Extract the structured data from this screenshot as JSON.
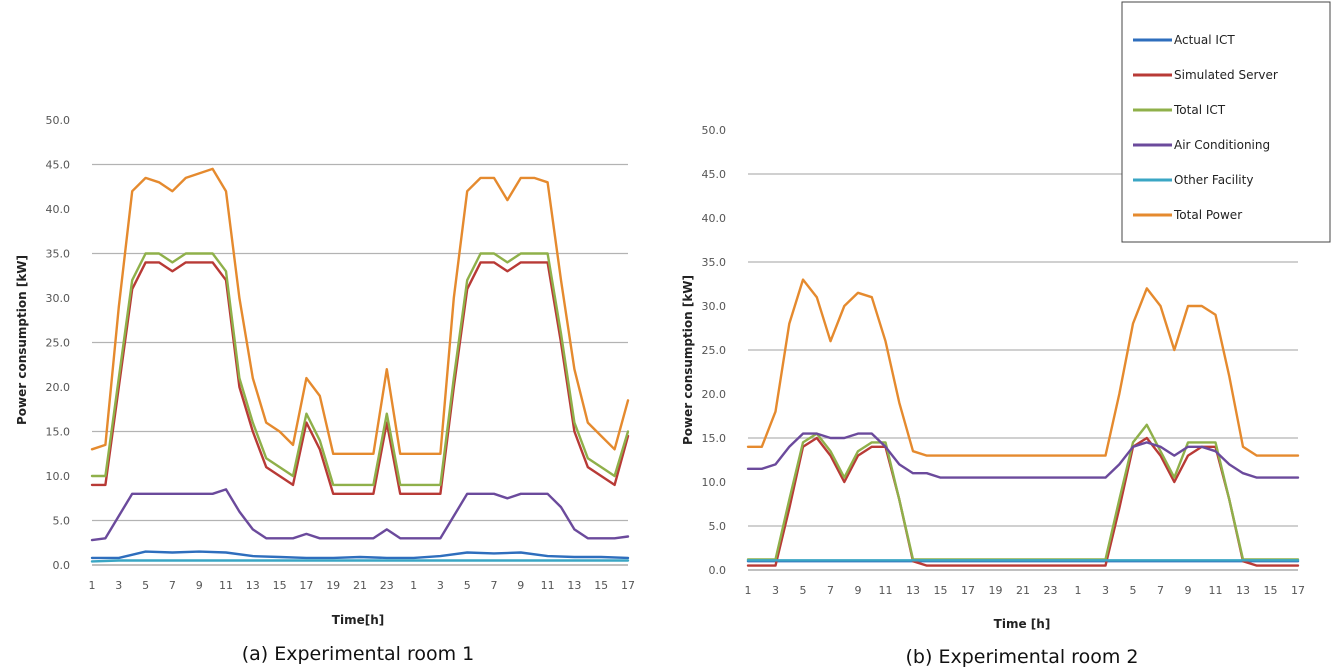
{
  "legend": {
    "position": "top-right",
    "entries": [
      {
        "label": "Actual ICT",
        "color": "#2e6ebd"
      },
      {
        "label": "Simulated Server",
        "color": "#b83a36"
      },
      {
        "label": "Total ICT",
        "color": "#8fb04a"
      },
      {
        "label": "Air Conditioning",
        "color": "#6b4a9c"
      },
      {
        "label": "Other Facility",
        "color": "#3aa6c4"
      },
      {
        "label": "Total Power",
        "color": "#e58a2e"
      }
    ]
  },
  "chart_data": [
    {
      "type": "line",
      "title": "(a) Experimental room 1",
      "xlabel": "Time[h]",
      "ylabel": "Power consumption [kW]",
      "ylim": [
        0,
        50
      ],
      "yticks": [
        "0.0",
        "5.0",
        "10.0",
        "15.0",
        "20.0",
        "25.0",
        "30.0",
        "35.0",
        "40.0",
        "45.0",
        "50.0"
      ],
      "xlim": [
        1,
        41
      ],
      "xtick_labels": [
        "1",
        "3",
        "5",
        "7",
        "9",
        "11",
        "13",
        "15",
        "17",
        "19",
        "21",
        "23",
        "1",
        "3",
        "5",
        "7",
        "9",
        "11",
        "13",
        "15",
        "17"
      ],
      "grid": "horizontal",
      "series": [
        {
          "name": "Actual ICT",
          "x": [
            1,
            3,
            5,
            7,
            9,
            11,
            13,
            15,
            17,
            19,
            21,
            23,
            25,
            27,
            29,
            31,
            33,
            35,
            37,
            39,
            41
          ],
          "values": [
            0.8,
            0.8,
            1.5,
            1.4,
            1.5,
            1.4,
            1.0,
            0.9,
            0.8,
            0.8,
            0.9,
            0.8,
            0.8,
            1.0,
            1.4,
            1.3,
            1.4,
            1.0,
            0.9,
            0.9,
            0.8
          ]
        },
        {
          "name": "Simulated Server",
          "x": [
            1,
            2,
            3,
            4,
            5,
            6,
            7,
            8,
            9,
            10,
            11,
            12,
            13,
            14,
            15,
            16,
            17,
            18,
            19,
            20,
            21,
            22,
            23,
            24,
            25,
            26,
            27,
            28,
            29,
            30,
            31,
            32,
            33,
            34,
            35,
            36,
            37,
            38,
            39,
            40,
            41
          ],
          "values": [
            9,
            9,
            20,
            31,
            34,
            34,
            33,
            34,
            34,
            34,
            32,
            20,
            15,
            11,
            10,
            9,
            16,
            13,
            8,
            8,
            8,
            8,
            16,
            8,
            8,
            8,
            8,
            20,
            31,
            34,
            34,
            33,
            34,
            34,
            34,
            25,
            15,
            11,
            10,
            9,
            14.5
          ]
        },
        {
          "name": "Total ICT",
          "x": [
            1,
            2,
            3,
            4,
            5,
            6,
            7,
            8,
            9,
            10,
            11,
            12,
            13,
            14,
            15,
            16,
            17,
            18,
            19,
            20,
            21,
            22,
            23,
            24,
            25,
            26,
            27,
            28,
            29,
            30,
            31,
            32,
            33,
            34,
            35,
            36,
            37,
            38,
            39,
            40,
            41
          ],
          "values": [
            10,
            10,
            21,
            32,
            35,
            35,
            34,
            35,
            35,
            35,
            33,
            21,
            16,
            12,
            11,
            10,
            17,
            14,
            9,
            9,
            9,
            9,
            17,
            9,
            9,
            9,
            9,
            21,
            32,
            35,
            35,
            34,
            35,
            35,
            35,
            26,
            16,
            12,
            11,
            10,
            15
          ]
        },
        {
          "name": "Air Conditioning",
          "x": [
            1,
            2,
            3,
            4,
            5,
            6,
            7,
            8,
            9,
            10,
            11,
            12,
            13,
            14,
            15,
            16,
            17,
            18,
            19,
            20,
            21,
            22,
            23,
            24,
            25,
            26,
            27,
            28,
            29,
            30,
            31,
            32,
            33,
            34,
            35,
            36,
            37,
            38,
            39,
            40,
            41
          ],
          "values": [
            2.8,
            3,
            5.5,
            8,
            8,
            8,
            8,
            8,
            8,
            8,
            8.5,
            6,
            4,
            3,
            3,
            3,
            3.5,
            3,
            3,
            3,
            3,
            3,
            4,
            3,
            3,
            3,
            3,
            5.5,
            8,
            8,
            8,
            7.5,
            8,
            8,
            8,
            6.5,
            4,
            3,
            3,
            3,
            3.2
          ]
        },
        {
          "name": "Other Facility",
          "x": [
            1,
            3,
            5,
            7,
            9,
            11,
            13,
            15,
            17,
            19,
            21,
            23,
            25,
            27,
            29,
            31,
            33,
            35,
            37,
            39,
            41
          ],
          "values": [
            0.4,
            0.5,
            0.5,
            0.5,
            0.5,
            0.5,
            0.5,
            0.5,
            0.5,
            0.5,
            0.5,
            0.5,
            0.5,
            0.5,
            0.5,
            0.5,
            0.5,
            0.5,
            0.5,
            0.5,
            0.5
          ]
        },
        {
          "name": "Total Power",
          "x": [
            1,
            2,
            3,
            4,
            5,
            6,
            7,
            8,
            9,
            10,
            11,
            12,
            13,
            14,
            15,
            16,
            17,
            18,
            19,
            20,
            21,
            22,
            23,
            24,
            25,
            26,
            27,
            28,
            29,
            30,
            31,
            32,
            33,
            34,
            35,
            36,
            37,
            38,
            39,
            40,
            41
          ],
          "values": [
            13,
            13.5,
            29,
            42,
            43.5,
            43,
            42,
            43.5,
            44,
            44.5,
            42,
            30,
            21,
            16,
            15,
            13.5,
            21,
            19,
            12.5,
            12.5,
            12.5,
            12.5,
            22,
            12.5,
            12.5,
            12.5,
            12.5,
            30,
            42,
            43.5,
            43.5,
            41,
            43.5,
            43.5,
            43,
            32,
            22,
            16,
            14.5,
            13,
            18.5
          ]
        }
      ]
    },
    {
      "type": "line",
      "title": "(b) Experimental room 2",
      "xlabel": "Time [h]",
      "ylabel": "Power consumption [kW]",
      "ylim": [
        0,
        50
      ],
      "yticks": [
        "0.0",
        "5.0",
        "10.0",
        "15.0",
        "20.0",
        "25.0",
        "30.0",
        "35.0",
        "40.0",
        "45.0",
        "50.0"
      ],
      "xlim": [
        1,
        41
      ],
      "xtick_labels": [
        "1",
        "3",
        "5",
        "7",
        "9",
        "11",
        "13",
        "15",
        "17",
        "19",
        "21",
        "23",
        "1",
        "3",
        "5",
        "7",
        "9",
        "11",
        "13",
        "15",
        "17"
      ],
      "grid": "horizontal",
      "series": [
        {
          "name": "Actual ICT",
          "x": [
            1,
            5,
            9,
            13,
            17,
            21,
            25,
            29,
            33,
            37,
            41
          ],
          "values": [
            1.0,
            1.0,
            1.0,
            1.0,
            1.0,
            1.0,
            1.0,
            1.0,
            1.0,
            1.0,
            1.0
          ]
        },
        {
          "name": "Simulated Server",
          "x": [
            1,
            2,
            3,
            4,
            5,
            6,
            7,
            8,
            9,
            10,
            11,
            12,
            13,
            14,
            15,
            16,
            17,
            18,
            19,
            20,
            21,
            22,
            23,
            24,
            25,
            26,
            27,
            28,
            29,
            30,
            31,
            32,
            33,
            34,
            35,
            36,
            37,
            38,
            39,
            40,
            41
          ],
          "values": [
            0.5,
            0.5,
            0.5,
            7,
            14,
            15,
            13,
            10,
            13,
            14,
            14,
            8,
            1,
            0.5,
            0.5,
            0.5,
            0.5,
            0.5,
            0.5,
            0.5,
            0.5,
            0.5,
            0.5,
            0.5,
            0.5,
            0.5,
            0.5,
            7,
            14,
            15,
            13,
            10,
            13,
            14,
            14,
            8,
            1,
            0.5,
            0.5,
            0.5,
            0.5
          ]
        },
        {
          "name": "Total ICT",
          "x": [
            1,
            2,
            3,
            4,
            5,
            6,
            7,
            8,
            9,
            10,
            11,
            12,
            13,
            14,
            15,
            16,
            17,
            18,
            19,
            20,
            21,
            22,
            23,
            24,
            25,
            26,
            27,
            28,
            29,
            30,
            31,
            32,
            33,
            34,
            35,
            36,
            37,
            38,
            39,
            40,
            41
          ],
          "values": [
            1.2,
            1.2,
            1.2,
            8,
            14.5,
            15.5,
            13.5,
            10.5,
            13.5,
            14.5,
            14.5,
            8,
            1.2,
            1.2,
            1.2,
            1.2,
            1.2,
            1.2,
            1.2,
            1.2,
            1.2,
            1.2,
            1.2,
            1.2,
            1.2,
            1.2,
            1.2,
            8,
            14.5,
            16.5,
            13.5,
            10.5,
            14.5,
            14.5,
            14.5,
            8,
            1.2,
            1.2,
            1.2,
            1.2,
            1.2
          ]
        },
        {
          "name": "Air Conditioning",
          "x": [
            1,
            2,
            3,
            4,
            5,
            6,
            7,
            8,
            9,
            10,
            11,
            12,
            13,
            14,
            15,
            16,
            17,
            18,
            19,
            20,
            21,
            22,
            23,
            24,
            25,
            26,
            27,
            28,
            29,
            30,
            31,
            32,
            33,
            34,
            35,
            36,
            37,
            38,
            39,
            40,
            41
          ],
          "values": [
            11.5,
            11.5,
            12,
            14,
            15.5,
            15.5,
            15,
            15,
            15.5,
            15.5,
            14,
            12,
            11,
            11,
            10.5,
            10.5,
            10.5,
            10.5,
            10.5,
            10.5,
            10.5,
            10.5,
            10.5,
            10.5,
            10.5,
            10.5,
            10.5,
            12,
            14,
            14.5,
            14,
            13,
            14,
            14,
            13.5,
            12,
            11,
            10.5,
            10.5,
            10.5,
            10.5
          ]
        },
        {
          "name": "Other Facility",
          "x": [
            1,
            5,
            9,
            13,
            17,
            21,
            25,
            29,
            33,
            37,
            41
          ],
          "values": [
            1.1,
            1.1,
            1.1,
            1.1,
            1.1,
            1.1,
            1.1,
            1.1,
            1.1,
            1.1,
            1.1
          ]
        },
        {
          "name": "Total Power",
          "x": [
            1,
            2,
            3,
            4,
            5,
            6,
            7,
            8,
            9,
            10,
            11,
            12,
            13,
            14,
            15,
            16,
            17,
            18,
            19,
            20,
            21,
            22,
            23,
            24,
            25,
            26,
            27,
            28,
            29,
            30,
            31,
            32,
            33,
            34,
            35,
            36,
            37,
            38,
            39,
            40,
            41
          ],
          "values": [
            14,
            14,
            18,
            28,
            33,
            31,
            26,
            30,
            31.5,
            31,
            26,
            19,
            13.5,
            13,
            13,
            13,
            13,
            13,
            13,
            13,
            13,
            13,
            13,
            13,
            13,
            13,
            13,
            20,
            28,
            32,
            30,
            25,
            30,
            30,
            29,
            22,
            14,
            13,
            13,
            13,
            13
          ]
        }
      ]
    }
  ]
}
